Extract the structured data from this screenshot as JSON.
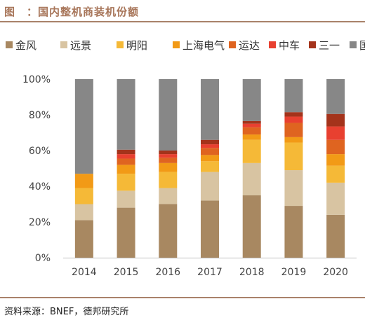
{
  "header": {
    "title": "图　：国内整机商装机份额"
  },
  "footer": {
    "source": "资料来源：BNEF，德邦研究所"
  },
  "chart_data": {
    "type": "bar",
    "stacked": true,
    "categories": [
      "2014",
      "2015",
      "2016",
      "2017",
      "2018",
      "2019",
      "2020"
    ],
    "y_ticks": [
      "0%",
      "20%",
      "40%",
      "60%",
      "80%",
      "100%"
    ],
    "ylim": [
      0,
      100
    ],
    "grid": false,
    "legend_position": "top",
    "series": [
      {
        "name": "金风",
        "color": "#a88861",
        "values": [
          21,
          28,
          30,
          32,
          35,
          29,
          24
        ]
      },
      {
        "name": "远景",
        "color": "#d8c4a2",
        "values": [
          9,
          9.5,
          9,
          16,
          18,
          20,
          18
        ]
      },
      {
        "name": "明阳",
        "color": "#f5b937",
        "values": [
          9,
          9.5,
          9,
          6,
          13,
          15.5,
          9.5
        ]
      },
      {
        "name": "上海电气",
        "color": "#f29a16",
        "values": [
          8,
          5,
          5,
          3.5,
          3,
          3,
          6.5
        ]
      },
      {
        "name": "运达",
        "color": "#df6420",
        "values": [
          0,
          3.5,
          3,
          4,
          4,
          8,
          8
        ]
      },
      {
        "name": "中车",
        "color": "#e84030",
        "values": [
          0,
          2.5,
          2,
          2,
          2,
          3.5,
          7.5
        ]
      },
      {
        "name": "三一",
        "color": "#a4331b",
        "values": [
          0,
          2.5,
          2,
          2.5,
          1.5,
          2.5,
          7
        ]
      },
      {
        "name": "国内其他",
        "color": "#878787",
        "values": [
          53,
          39.5,
          40,
          34,
          23.5,
          18.5,
          19.5
        ]
      }
    ]
  }
}
